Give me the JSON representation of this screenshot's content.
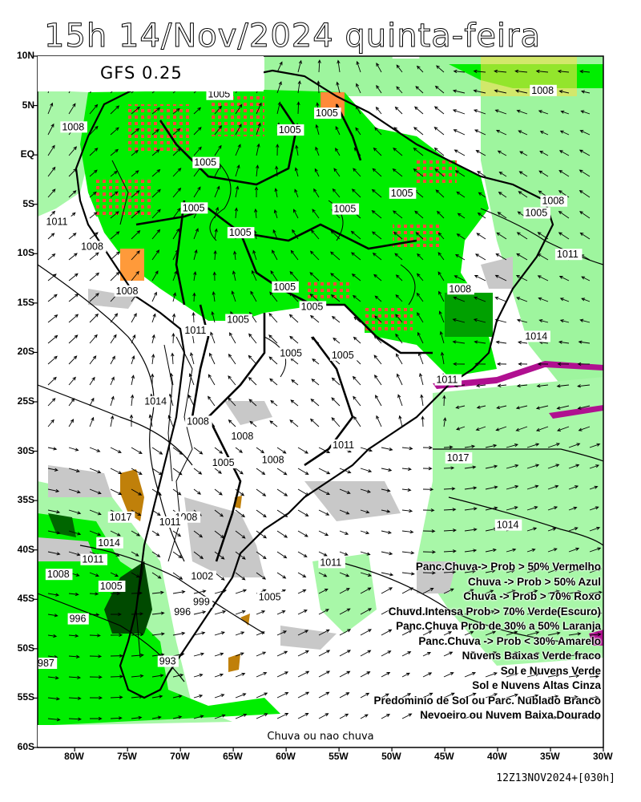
{
  "title": "15h 14/Nov/2024 quinta-feira",
  "model": "GFS 0.25",
  "footer_label": "Chuva ou nao chuva",
  "run_label": "12Z13NOV2024+[030h]",
  "lat_labels": [
    "10N",
    "5N",
    "EQ",
    "5S",
    "10S",
    "15S",
    "20S",
    "25S",
    "30S",
    "35S",
    "40S",
    "45S",
    "50S",
    "55S",
    "60S"
  ],
  "lon_labels": [
    "80W",
    "75W",
    "70W",
    "65W",
    "60W",
    "55W",
    "50W",
    "45W",
    "40W",
    "35W",
    "30W"
  ],
  "legend": [
    "Panc.Chuva-> Prob > 50% Vermelho",
    "Chuva -> Prob > 50% Azul",
    "Chuva -> Prob > 70% Roxo",
    "Chuvd.Intensa Prob > 70% Verde(Escuro)",
    "Panc.Chuva Prob de 30% a 50% Laranja",
    "Panc.Chuva -> Prob < 30% Amarelo",
    "Nuvens Baixas Verde fraco",
    "Sol e Nuvens Verde",
    "Sol e Nuvens Altas Cinza",
    "Predominio de Sol ou Parc. Nublado Branco",
    "Nevoeiro ou Nuvem Baixa Dourado"
  ],
  "isobars": [
    {
      "label": "1008",
      "lat": 10,
      "lon": -49.8
    },
    {
      "label": "1005",
      "lat": 5.8,
      "lon": -67.4
    },
    {
      "label": "1005",
      "lat": 3.9,
      "lon": -57.2
    },
    {
      "label": "1005",
      "lat": 2.2,
      "lon": -60.7
    },
    {
      "label": "1008",
      "lat": 2.5,
      "lon": -81.2
    },
    {
      "label": "1005",
      "lat": -1.1,
      "lon": -68.7
    },
    {
      "label": "1005",
      "lat": -5.7,
      "lon": -69.8
    },
    {
      "label": "1005",
      "lat": -5.8,
      "lon": -55.5
    },
    {
      "label": "1005",
      "lat": -4.2,
      "lon": -50.1
    },
    {
      "label": "1008",
      "lat": -5.0,
      "lon": -35.8
    },
    {
      "label": "1005",
      "lat": -6.2,
      "lon": -37.4
    },
    {
      "label": "1008",
      "lat": 6.2,
      "lon": -36.8
    },
    {
      "label": "1005",
      "lat": -8.2,
      "lon": -65.4
    },
    {
      "label": "1011",
      "lat": -7.1,
      "lon": -82.7
    },
    {
      "label": "1008",
      "lat": -9.6,
      "lon": -79.4
    },
    {
      "label": "1011",
      "lat": -10.4,
      "lon": -34.4
    },
    {
      "label": "1005",
      "lat": -13.7,
      "lon": -61.2
    },
    {
      "label": "1005",
      "lat": -15.7,
      "lon": -58.6
    },
    {
      "label": "1008",
      "lat": -13.9,
      "lon": -44.6
    },
    {
      "label": "1008",
      "lat": -14.1,
      "lon": -76.1
    },
    {
      "label": "1005",
      "lat": -17.0,
      "lon": -65.6
    },
    {
      "label": "1011",
      "lat": -18.1,
      "lon": -69.6
    },
    {
      "label": "1014",
      "lat": -18.7,
      "lon": -37.4
    },
    {
      "label": "1005",
      "lat": -20.4,
      "lon": -60.6
    },
    {
      "label": "1005",
      "lat": -20.6,
      "lon": -55.7
    },
    {
      "label": "1011",
      "lat": -23.1,
      "lon": -45.8
    },
    {
      "label": "1014",
      "lat": -25.3,
      "lon": -73.4
    },
    {
      "label": "1008",
      "lat": -27.3,
      "lon": -69.4
    },
    {
      "label": "1008",
      "lat": -28.8,
      "lon": -65.2
    },
    {
      "label": "1011",
      "lat": -29.7,
      "lon": -55.6
    },
    {
      "label": "1008",
      "lat": -31.2,
      "lon": -62.3
    },
    {
      "label": "1005",
      "lat": -31.5,
      "lon": -67.0
    },
    {
      "label": "1017",
      "lat": -31.0,
      "lon": -44.8
    },
    {
      "label": "1017",
      "lat": -37.0,
      "lon": -76.7
    },
    {
      "label": "1008",
      "lat": -37.0,
      "lon": -70.5
    },
    {
      "label": "1011",
      "lat": -37.5,
      "lon": -72.0
    },
    {
      "label": "1014",
      "lat": -37.8,
      "lon": -40.1
    },
    {
      "label": "1014",
      "lat": -39.6,
      "lon": -77.8
    },
    {
      "label": "1011",
      "lat": -41.3,
      "lon": -79.3
    },
    {
      "label": "1011",
      "lat": -41.6,
      "lon": -56.8
    },
    {
      "label": "1008",
      "lat": -42.8,
      "lon": -82.6
    },
    {
      "label": "1002",
      "lat": -43.0,
      "lon": -69.0
    },
    {
      "label": "1005",
      "lat": -44.0,
      "lon": -77.6
    },
    {
      "label": "1005",
      "lat": -45.1,
      "lon": -62.6
    },
    {
      "label": "999",
      "lat": -45.6,
      "lon": -68.8
    },
    {
      "label": "996",
      "lat": -47.3,
      "lon": -80.5
    },
    {
      "label": "996",
      "lat": -46.6,
      "lon": -70.6
    },
    {
      "label": "993",
      "lat": -51.6,
      "lon": -72.0
    },
    {
      "label": "987",
      "lat": -51.8,
      "lon": -83.5
    }
  ]
}
